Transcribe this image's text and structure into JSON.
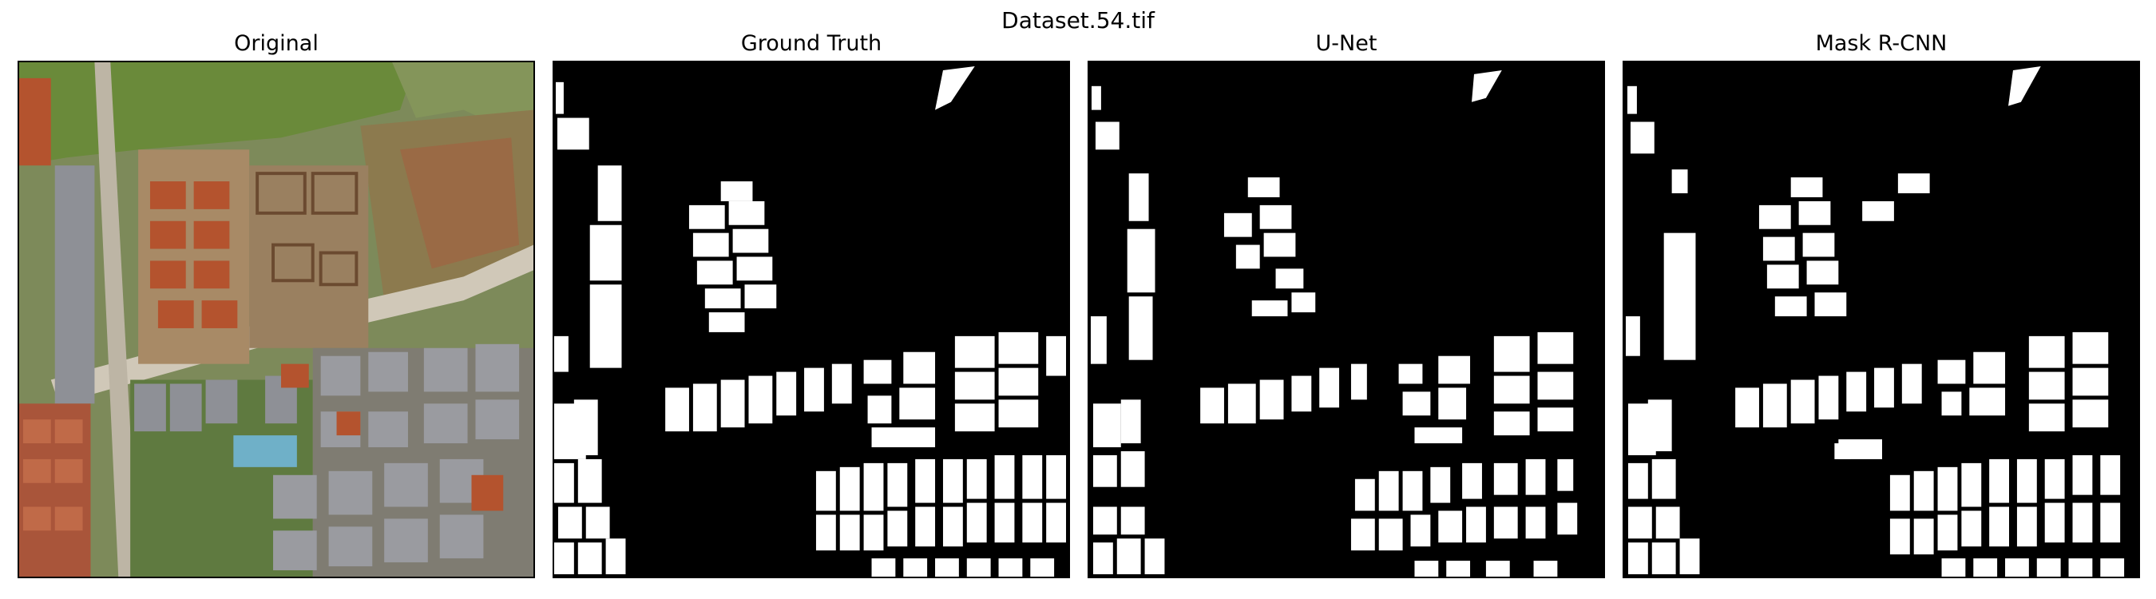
{
  "figure": {
    "suptitle": "Dataset.54.tif",
    "panels": [
      {
        "title": "Original",
        "kind": "aerial-photo"
      },
      {
        "title": "Ground Truth",
        "kind": "binary-mask"
      },
      {
        "title": "U-Net",
        "kind": "binary-mask"
      },
      {
        "title": "Mask R-CNN",
        "kind": "binary-mask"
      }
    ]
  },
  "colors": {
    "background": "#ffffff",
    "mask_background": "#000000",
    "mask_foreground": "#ffffff",
    "vegetation": "#6f8a3e",
    "roof_red": "#b4532e",
    "roof_gray": "#8e9096",
    "road": "#c9c2b4"
  }
}
